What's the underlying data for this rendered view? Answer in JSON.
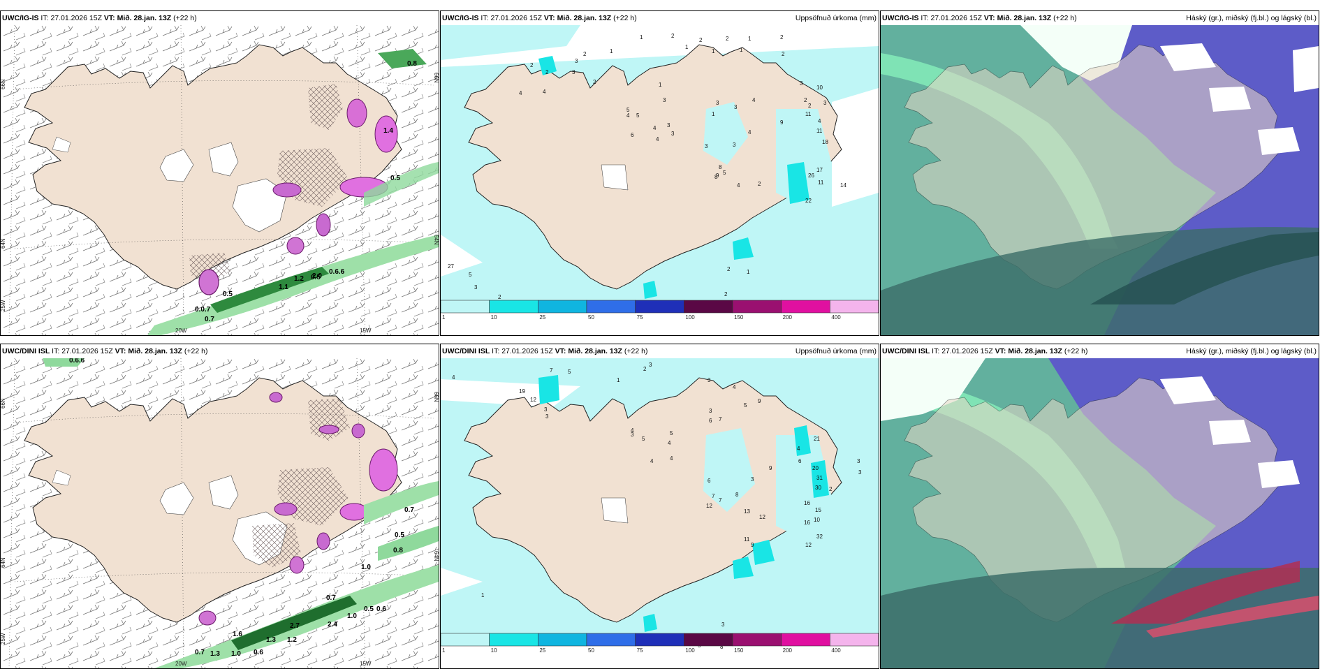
{
  "panels": [
    {
      "model": "UWC/IG-IS",
      "it_label": "IT:",
      "it": "27.01.2026 15Z",
      "vt_label": "VT:",
      "vt": "Mið. 28.jan. 13Z",
      "lead": "(+22 h)",
      "right": ""
    },
    {
      "model": "UWC/IG-IS",
      "it_label": "IT:",
      "it": "27.01.2026 15Z",
      "vt_label": "VT:",
      "vt": "Mið. 28.jan. 13Z",
      "lead": "(+22 h)",
      "right": "Uppsöfnuð úrkoma (mm)"
    },
    {
      "model": "UWC/IG-IS",
      "it_label": "IT:",
      "it": "27.01.2026 15Z",
      "vt_label": "VT:",
      "vt": "Mið. 28.jan. 13Z",
      "lead": "(+22 h)",
      "right": "Háský (gr.), miðský (fj.bl.) og lágský (bl.)"
    },
    {
      "model": "UWC/DINI ISL",
      "it_label": "IT:",
      "it": "27.01.2026 15Z",
      "vt_label": "VT:",
      "vt": "Mið. 28.jan. 13Z",
      "lead": "(+22 h)",
      "right": ""
    },
    {
      "model": "UWC/DINI ISL",
      "it_label": "IT:",
      "it": "27.01.2026 15Z",
      "vt_label": "VT:",
      "vt": "Mið. 28.jan. 13Z",
      "lead": "(+22 h)",
      "right": "Uppsöfnuð úrkoma (mm)"
    },
    {
      "model": "UWC/DINI ISL",
      "it_label": "IT:",
      "it": "27.01.2026 15Z",
      "vt_label": "VT:",
      "vt": "Mið. 28.jan. 13Z",
      "lead": "(+22 h)",
      "right": "Háský (gr.), miðský (fj.bl.) og lágský (bl.)"
    }
  ],
  "axes": {
    "lat_top": "66N",
    "lat_mid": "64N",
    "lon_left": "25W",
    "lon_mid": "20W",
    "lon_right": "15W"
  },
  "colorbar": {
    "labels": [
      "1",
      "10",
      "25",
      "50",
      "75",
      "100",
      "150",
      "200",
      "400"
    ],
    "colors": [
      "#bff6f6",
      "#19e5e5",
      "#10b5e0",
      "#2f6ee8",
      "#1f2fb8",
      "#5a0845",
      "#9a1070",
      "#e010a0",
      "#f4b4ec"
    ]
  },
  "values": {
    "wind_ig": [
      "0.8",
      "1.4",
      "0.5",
      "0.6.6",
      "1.1",
      "1.2",
      "2.0",
      "0.0.7",
      "0.7",
      "0.5",
      "0.5"
    ],
    "wind_dini": [
      "0.6.6",
      "0.7",
      "0.5",
      "0.8",
      "1.0",
      "0.7",
      "0.5",
      "0.6",
      "1.0",
      "2.4",
      "2.7",
      "1.2",
      "1.3",
      "1.6",
      "1.0",
      "0.6",
      "0.7",
      "1.3"
    ],
    "precip_ig": [
      "1",
      "2",
      "2",
      "2",
      "1",
      "2",
      "2",
      "1",
      "1",
      "1",
      "1",
      "2",
      "3",
      "3",
      "2",
      "4",
      "2",
      "2",
      "4",
      "1",
      "3",
      "3",
      "3",
      "1",
      "4",
      "3",
      "4",
      "3",
      "5",
      "3",
      "4",
      "3",
      "4",
      "4",
      "5",
      "5",
      "6",
      "8",
      "9",
      "4",
      "2",
      "8",
      "2",
      "2",
      "3",
      "11",
      "9",
      "4",
      "11",
      "18",
      "17",
      "26",
      "11",
      "22",
      "14",
      "27",
      "5",
      "3",
      "2",
      "1",
      "2",
      "11",
      "9",
      "3",
      "10",
      "2"
    ],
    "precip_dini": [
      "4",
      "7",
      "5",
      "3",
      "2",
      "1",
      "3",
      "19",
      "12",
      "3",
      "3",
      "4",
      "3",
      "5",
      "5",
      "4",
      "4",
      "4",
      "3",
      "6",
      "7",
      "5",
      "9",
      "4",
      "21",
      "20",
      "31",
      "30",
      "16",
      "15",
      "10",
      "2",
      "3",
      "3",
      "4",
      "6",
      "9",
      "3",
      "8",
      "13",
      "12",
      "16",
      "32",
      "12",
      "9",
      "11",
      "6",
      "7",
      "7",
      "12",
      "1",
      "5",
      "3",
      "8"
    ]
  }
}
